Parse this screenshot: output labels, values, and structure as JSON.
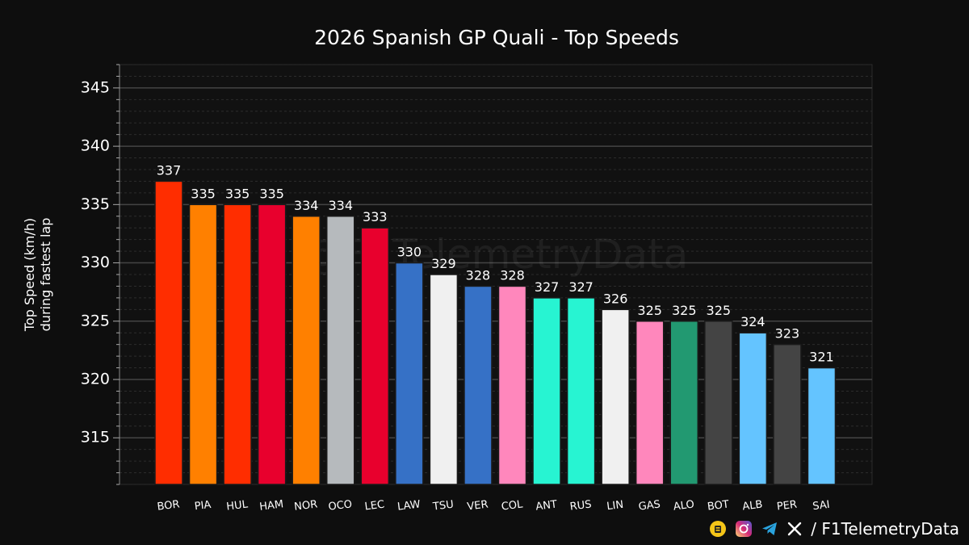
{
  "chart_data": {
    "type": "bar",
    "title": "2026 Spanish GP Quali - Top Speeds",
    "ylabel_line1": "Top Speed (km/h)",
    "ylabel_line2": "during fastest lap",
    "ylim": [
      311,
      347
    ],
    "yticks": [
      315,
      320,
      325,
      330,
      335,
      340,
      345
    ],
    "grid": true,
    "watermark": "@F1TelemetryData",
    "categories": [
      "BOR",
      "PIA",
      "HUL",
      "HAM",
      "NOR",
      "OCO",
      "LEC",
      "LAW",
      "TSU",
      "VER",
      "COL",
      "ANT",
      "RUS",
      "LIN",
      "GAS",
      "ALO",
      "BOT",
      "ALB",
      "PER",
      "SAI"
    ],
    "values": [
      337,
      335,
      335,
      335,
      334,
      334,
      333,
      330,
      329,
      328,
      328,
      327,
      327,
      326,
      325,
      325,
      325,
      324,
      323,
      321
    ],
    "colors": [
      "#ff2d00",
      "#ff8000",
      "#ff2d00",
      "#e8002d",
      "#ff8000",
      "#b6babd",
      "#e8002d",
      "#3671c6",
      "#f0f0f0",
      "#3671c6",
      "#ff87bc",
      "#27f4d2",
      "#27f4d2",
      "#f0f0f0",
      "#ff87bc",
      "#229971",
      "#444444",
      "#64c4ff",
      "#444444",
      "#64c4ff"
    ]
  },
  "footer": {
    "handle": "/ F1TelemetryData",
    "icons": [
      "telegram-yellow-icon",
      "instagram-icon",
      "telegram-icon",
      "x-icon"
    ]
  }
}
